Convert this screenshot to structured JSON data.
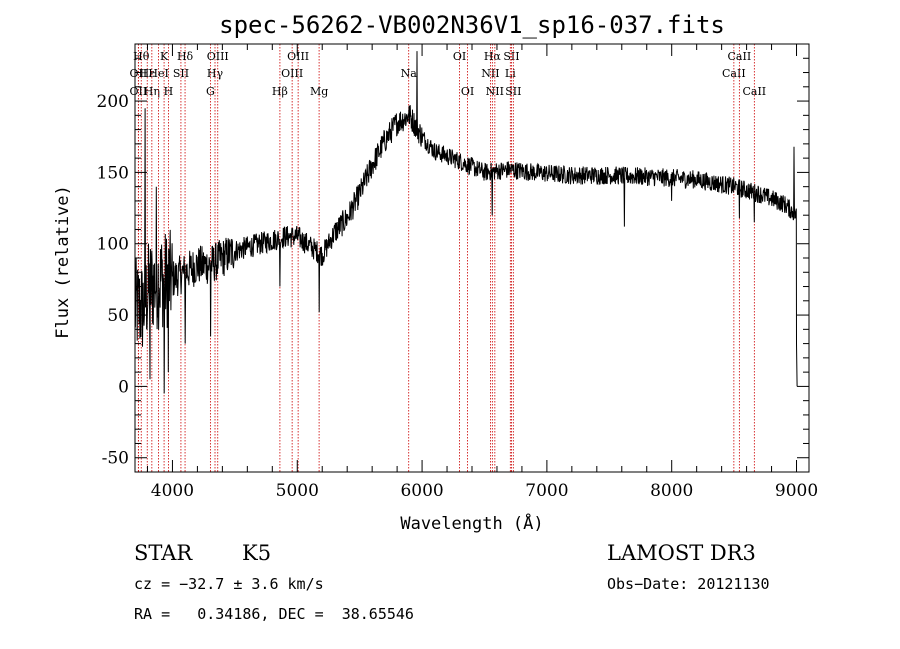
{
  "chart_data": {
    "type": "line",
    "title": "spec-56262-VB002N36V1_sp16-037.fits",
    "xlabel": "Wavelength (Å)",
    "ylabel": "Flux (relative)",
    "xlim": [
      3700,
      9100
    ],
    "ylim": [
      -60,
      240
    ],
    "xticks": [
      4000,
      5000,
      6000,
      7000,
      8000,
      9000
    ],
    "yticks": [
      -50,
      0,
      50,
      100,
      150,
      200
    ],
    "spectrum_anchors": [
      [
        3700,
        55
      ],
      [
        3760,
        55
      ],
      [
        3820,
        70
      ],
      [
        3900,
        75
      ],
      [
        4000,
        75
      ],
      [
        4100,
        80
      ],
      [
        4200,
        85
      ],
      [
        4300,
        85
      ],
      [
        4400,
        90
      ],
      [
        4500,
        95
      ],
      [
        4700,
        100
      ],
      [
        4900,
        105
      ],
      [
        5000,
        105
      ],
      [
        5200,
        92
      ],
      [
        5300,
        108
      ],
      [
        5400,
        118
      ],
      [
        5500,
        135
      ],
      [
        5600,
        155
      ],
      [
        5700,
        172
      ],
      [
        5800,
        185
      ],
      [
        5900,
        190
      ],
      [
        6000,
        175
      ],
      [
        6100,
        165
      ],
      [
        6300,
        158
      ],
      [
        6500,
        150
      ],
      [
        6700,
        152
      ],
      [
        6900,
        150
      ],
      [
        7200,
        148
      ],
      [
        7500,
        148
      ],
      [
        7800,
        147
      ],
      [
        8200,
        145
      ],
      [
        8500,
        140
      ],
      [
        8700,
        135
      ],
      [
        8900,
        128
      ],
      [
        9000,
        120
      ]
    ],
    "spectrum_features": [
      {
        "x": 3780,
        "y": 195
      },
      {
        "x": 3820,
        "y": 5
      },
      {
        "x": 3870,
        "y": 140
      },
      {
        "x": 3933,
        "y": -5
      },
      {
        "x": 3968,
        "y": 10
      },
      {
        "x": 4101,
        "y": 30
      },
      {
        "x": 4305,
        "y": 35
      },
      {
        "x": 4861,
        "y": 70
      },
      {
        "x": 5175,
        "y": 52
      },
      {
        "x": 5890,
        "y": 190
      },
      {
        "x": 5960,
        "y": 235
      },
      {
        "x": 6563,
        "y": 120
      },
      {
        "x": 7620,
        "y": 112
      },
      {
        "x": 8000,
        "y": 130
      },
      {
        "x": 8542,
        "y": 118
      },
      {
        "x": 8662,
        "y": 115
      },
      {
        "x": 8980,
        "y": 168
      },
      {
        "x": 9000,
        "y": 30
      },
      {
        "x": 9005,
        "y": 0
      }
    ],
    "line_markers": [
      {
        "x": 3750,
        "label": "Hθ",
        "row": 0
      },
      {
        "x": 3727,
        "label": "OII",
        "row": 1
      },
      {
        "x": 3727,
        "label": "OII",
        "row": 2
      },
      {
        "x": 3798,
        "label": "Hε",
        "row": 1
      },
      {
        "x": 3835,
        "label": "Hη",
        "row": 2
      },
      {
        "x": 3889,
        "label": "HeI",
        "row": 1
      },
      {
        "x": 3933,
        "label": "K",
        "row": 0
      },
      {
        "x": 3968,
        "label": "H",
        "row": 2
      },
      {
        "x": 4068,
        "label": "SII",
        "row": 1
      },
      {
        "x": 4101,
        "label": "Hδ",
        "row": 0
      },
      {
        "x": 4304,
        "label": "G",
        "row": 2
      },
      {
        "x": 4341,
        "label": "Hγ",
        "row": 1
      },
      {
        "x": 4363,
        "label": "OIII",
        "row": 0
      },
      {
        "x": 4861,
        "label": "Hβ",
        "row": 2
      },
      {
        "x": 4959,
        "label": "OIII",
        "row": 1
      },
      {
        "x": 5007,
        "label": "OIII",
        "row": 0
      },
      {
        "x": 5175,
        "label": "Mg",
        "row": 2
      },
      {
        "x": 5893,
        "label": "Na",
        "row": 1
      },
      {
        "x": 6300,
        "label": "OI",
        "row": 0
      },
      {
        "x": 6364,
        "label": "OI",
        "row": 2
      },
      {
        "x": 6548,
        "label": "NII",
        "row": 1
      },
      {
        "x": 6563,
        "label": "Hα",
        "row": 0
      },
      {
        "x": 6583,
        "label": "NII",
        "row": 2
      },
      {
        "x": 6707,
        "label": "Li",
        "row": 1
      },
      {
        "x": 6716,
        "label": "SII",
        "row": 0
      },
      {
        "x": 6731,
        "label": "SII",
        "row": 2
      },
      {
        "x": 8498,
        "label": "CaII",
        "row": 1
      },
      {
        "x": 8542,
        "label": "CaII",
        "row": 0
      },
      {
        "x": 8662,
        "label": "CaII",
        "row": 2
      }
    ]
  },
  "info": {
    "class": "STAR",
    "subclass": "K5",
    "survey": "LAMOST DR3",
    "redshift": "cz = −32.7 ± 3.6 km/s",
    "obs_date": "Obs−Date: 20121130",
    "coords": "RA =   0.34186, DEC =  38.65546"
  }
}
